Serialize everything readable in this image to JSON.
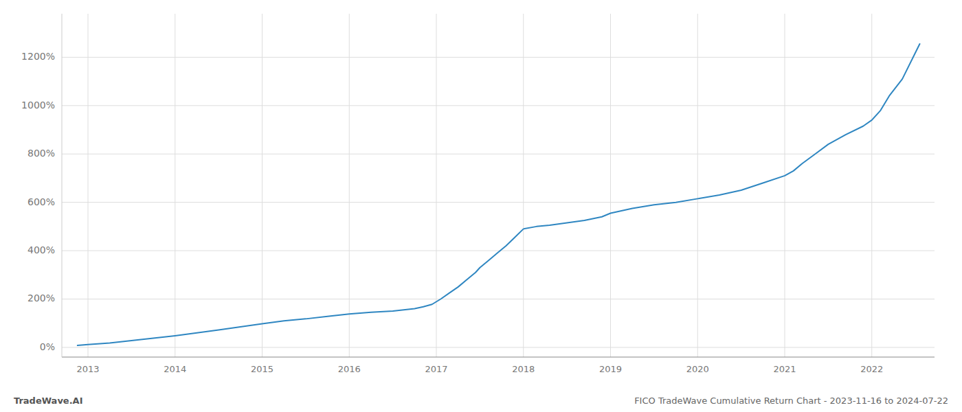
{
  "chart_data": {
    "type": "line",
    "title": "FICO TradeWave Cumulative Return Chart - 2023-11-16 to 2024-07-22",
    "subtitle": "TradeWave.AI",
    "color": "#2e86c1",
    "grid": true,
    "x": [
      2012.88,
      2013.0,
      2013.25,
      2013.5,
      2013.75,
      2014.0,
      2014.25,
      2014.5,
      2014.75,
      2015.0,
      2015.25,
      2015.5,
      2015.75,
      2016.0,
      2016.25,
      2016.5,
      2016.75,
      2016.85,
      2016.95,
      2017.05,
      2017.15,
      2017.25,
      2017.35,
      2017.45,
      2017.5,
      2017.6,
      2017.7,
      2017.8,
      2017.9,
      2018.0,
      2018.15,
      2018.3,
      2018.5,
      2018.7,
      2018.9,
      2019.0,
      2019.25,
      2019.5,
      2019.75,
      2020.0,
      2020.25,
      2020.5,
      2020.75,
      2021.0,
      2021.1,
      2021.2,
      2021.35,
      2021.5,
      2021.7,
      2021.9,
      2022.0,
      2022.1,
      2022.2,
      2022.35,
      2022.55
    ],
    "values": [
      8,
      12,
      18,
      28,
      38,
      48,
      60,
      72,
      85,
      98,
      110,
      118,
      128,
      138,
      145,
      150,
      160,
      168,
      178,
      200,
      225,
      250,
      280,
      310,
      330,
      360,
      390,
      420,
      455,
      490,
      500,
      505,
      515,
      525,
      540,
      555,
      575,
      590,
      600,
      615,
      630,
      650,
      680,
      710,
      730,
      760,
      800,
      840,
      880,
      915,
      940,
      980,
      1040,
      1110,
      1255
    ],
    "xlim": [
      2012.7,
      2022.72
    ],
    "xticks": [
      2013,
      2014,
      2015,
      2016,
      2017,
      2018,
      2019,
      2020,
      2021,
      2022
    ],
    "ylim": [
      -40,
      1380
    ],
    "yticks": [
      {
        "value": 0,
        "label": "0%"
      },
      {
        "value": 200,
        "label": "200%"
      },
      {
        "value": 400,
        "label": "400%"
      },
      {
        "value": 600,
        "label": "600%"
      },
      {
        "value": 800,
        "label": "800%"
      },
      {
        "value": 1000,
        "label": "1000%"
      },
      {
        "value": 1200,
        "label": "1200%"
      }
    ]
  }
}
